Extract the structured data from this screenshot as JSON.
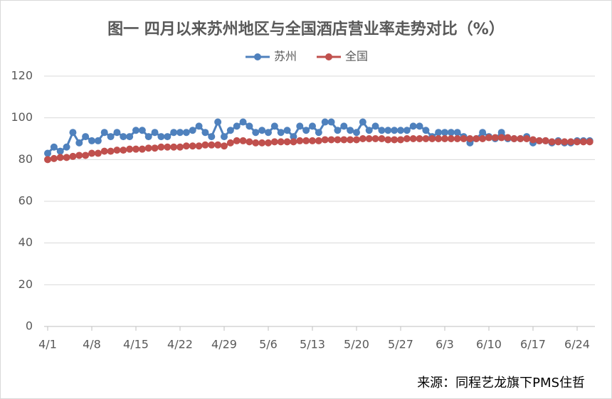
{
  "chart_data": {
    "type": "line",
    "title": "图一  四月以来苏州地区与全国酒店营业率走势对比（%）",
    "source": "来源：同程艺龙旗下PMS住哲",
    "categories": [
      "4/1",
      null,
      null,
      null,
      null,
      null,
      null,
      "4/8",
      null,
      null,
      null,
      null,
      null,
      null,
      "4/15",
      null,
      null,
      null,
      null,
      null,
      null,
      "4/22",
      null,
      null,
      null,
      null,
      null,
      null,
      "4/29",
      null,
      null,
      null,
      null,
      null,
      null,
      "5/6",
      null,
      null,
      null,
      null,
      null,
      null,
      "5/13",
      null,
      null,
      null,
      null,
      null,
      null,
      "5/20",
      null,
      null,
      null,
      null,
      null,
      null,
      "5/27",
      null,
      null,
      null,
      null,
      null,
      null,
      "6/3",
      null,
      null,
      null,
      null,
      null,
      null,
      "6/10",
      null,
      null,
      null,
      null,
      null,
      null,
      "6/17",
      null,
      null,
      null,
      null,
      null,
      null,
      "6/24",
      null,
      null
    ],
    "series": [
      {
        "name": "苏州",
        "color": "#4f81bd",
        "values": [
          83,
          86,
          84,
          86,
          93,
          88,
          91,
          89,
          89,
          93,
          91,
          93,
          91,
          91,
          94,
          94,
          91,
          93,
          91,
          91,
          93,
          93,
          93,
          94,
          96,
          93,
          91,
          98,
          91,
          94,
          96,
          98,
          96,
          93,
          94,
          93,
          96,
          93,
          94,
          91,
          96,
          94,
          96,
          93,
          98,
          98,
          94,
          96,
          94,
          93,
          98,
          94,
          96,
          94,
          94,
          94,
          94,
          94,
          96,
          96,
          94,
          91,
          93,
          93,
          93,
          93,
          91,
          88,
          90,
          93,
          91,
          90,
          93,
          90,
          90,
          90,
          91,
          88,
          89,
          89,
          88,
          89,
          88,
          88,
          89,
          89,
          89
        ]
      },
      {
        "name": "全国",
        "color": "#c0504d",
        "values": [
          80,
          80.5,
          81,
          81,
          81.5,
          82,
          82,
          83,
          83,
          84,
          84,
          84.5,
          84.5,
          85,
          85,
          85,
          85.5,
          85.5,
          86,
          86,
          86,
          86,
          86.5,
          86.5,
          86.5,
          87,
          87,
          87,
          86.5,
          88,
          89,
          89,
          88.5,
          88,
          88,
          88,
          88.5,
          88.5,
          88.5,
          88.5,
          89,
          89,
          89,
          89,
          89.5,
          89.5,
          89.5,
          89.5,
          89.5,
          89.5,
          90,
          90,
          90,
          90,
          89.5,
          89.5,
          89.5,
          90,
          90,
          90,
          90,
          90,
          90,
          90,
          90,
          90,
          90,
          90,
          90,
          90,
          90.5,
          90.5,
          90.5,
          90.5,
          90,
          90,
          90,
          89.5,
          89,
          89,
          88.5,
          88.5,
          88.5,
          88.5,
          88.5,
          88.5,
          88.5
        ]
      }
    ],
    "ylim": [
      0,
      120
    ],
    "yticks": [
      0,
      20,
      40,
      60,
      80,
      100,
      120
    ],
    "grid": true,
    "legend": "top"
  }
}
